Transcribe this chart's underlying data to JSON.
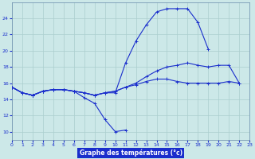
{
  "bg_color": "#cce8e8",
  "grid_color": "#aacece",
  "line_color": "#1a2ecc",
  "xlabel": "Graphe des températures (°c)",
  "xlim": [
    0,
    23
  ],
  "ylim": [
    9,
    26
  ],
  "yticks": [
    10,
    12,
    14,
    16,
    18,
    20,
    22,
    24
  ],
  "xticks": [
    0,
    1,
    2,
    3,
    4,
    5,
    6,
    7,
    8,
    9,
    10,
    11,
    12,
    13,
    14,
    15,
    16,
    17,
    18,
    19,
    20,
    21,
    22,
    23
  ],
  "series": [
    {
      "x": [
        0,
        1,
        2,
        3,
        4,
        5,
        6,
        7,
        8,
        9,
        10,
        11
      ],
      "y": [
        15.5,
        14.8,
        14.5,
        15.0,
        15.2,
        15.2,
        15.0,
        14.2,
        13.5,
        11.5,
        10.0,
        10.2
      ]
    },
    {
      "x": [
        0,
        1,
        2,
        3,
        4,
        5,
        6,
        7,
        8,
        9,
        10,
        11,
        12,
        13,
        14,
        15,
        16,
        17,
        18,
        19
      ],
      "y": [
        15.5,
        14.8,
        14.5,
        15.0,
        15.2,
        15.2,
        15.0,
        14.8,
        14.5,
        14.8,
        14.8,
        18.5,
        21.2,
        23.2,
        24.8,
        25.2,
        25.2,
        25.2,
        23.5,
        20.2
      ]
    },
    {
      "x": [
        0,
        1,
        2,
        3,
        4,
        5,
        6,
        7,
        8,
        9,
        10,
        11,
        12,
        13,
        14,
        15,
        16,
        17,
        18,
        19,
        20,
        21,
        22
      ],
      "y": [
        15.5,
        14.8,
        14.5,
        15.0,
        15.2,
        15.2,
        15.0,
        14.8,
        14.5,
        14.8,
        15.0,
        15.5,
        16.0,
        16.8,
        17.5,
        18.0,
        18.2,
        18.5,
        18.2,
        18.0,
        18.2,
        18.2,
        16.0
      ]
    },
    {
      "x": [
        0,
        1,
        2,
        3,
        4,
        5,
        6,
        7,
        8,
        9,
        10,
        11,
        12,
        13,
        14,
        15,
        16,
        17,
        18,
        19,
        20,
        21,
        22
      ],
      "y": [
        15.5,
        14.8,
        14.5,
        15.0,
        15.2,
        15.2,
        15.0,
        14.8,
        14.5,
        14.8,
        15.0,
        15.5,
        15.8,
        16.2,
        16.5,
        16.5,
        16.2,
        16.0,
        16.0,
        16.0,
        16.0,
        16.2,
        16.0
      ]
    }
  ]
}
